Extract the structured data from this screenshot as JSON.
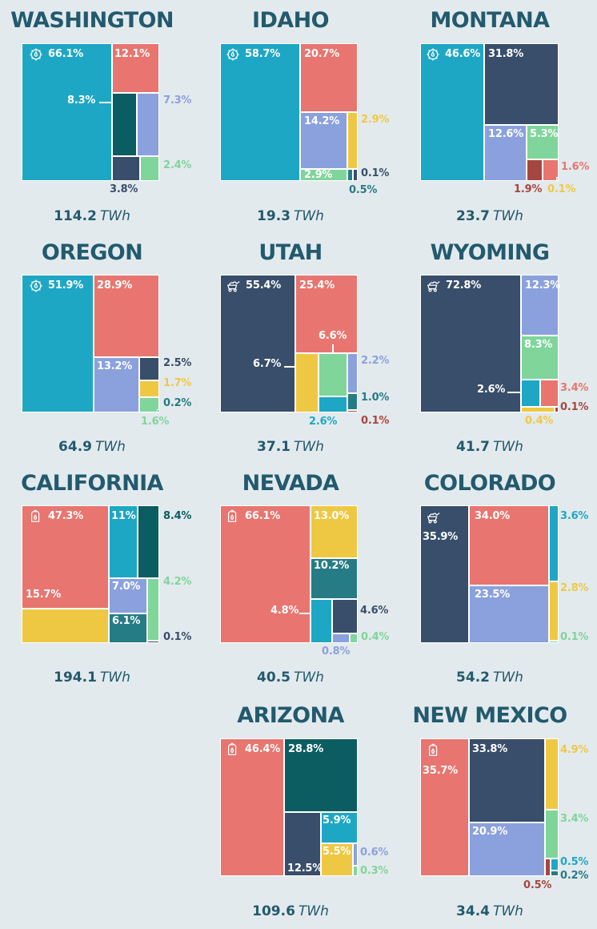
{
  "colors": {
    "hydro": "#1ea7c4",
    "gas": "#e8756f",
    "coal": "#384e6a",
    "nuclear": "#0b5d62",
    "wind": "#8ba1dd",
    "solar": "#efc843",
    "other_green": "#7fd59a",
    "geothermal": "#267c85",
    "oil": "#a6473f",
    "background": "#e3eaed",
    "title": "#225a6e"
  },
  "chart_data": [
    {
      "type": "treemap",
      "title": "WASHINGTON",
      "total": "114.2",
      "unit": "TWh",
      "icon": "hydro-icon",
      "values": [
        {
          "category": "hydro",
          "value": 66.1,
          "label": "66.1%"
        },
        {
          "category": "gas",
          "value": 12.1,
          "label": "12.1%"
        },
        {
          "category": "nuclear",
          "value": 8.3,
          "label": "8.3%"
        },
        {
          "category": "wind",
          "value": 7.3,
          "label": "7.3%"
        },
        {
          "category": "coal",
          "value": 3.8,
          "label": "3.8%"
        },
        {
          "category": "other_green",
          "value": 2.4,
          "label": "2.4%"
        }
      ]
    },
    {
      "type": "treemap",
      "title": "IDAHO",
      "total": "19.3",
      "unit": "TWh",
      "icon": "hydro-icon",
      "values": [
        {
          "category": "hydro",
          "value": 58.7,
          "label": "58.7%"
        },
        {
          "category": "gas",
          "value": 20.7,
          "label": "20.7%"
        },
        {
          "category": "wind",
          "value": 14.2,
          "label": "14.2%"
        },
        {
          "category": "solar",
          "value": 2.9,
          "label": "2.9%"
        },
        {
          "category": "other_green",
          "value": 2.9,
          "label": "2.9%"
        },
        {
          "category": "coal",
          "value": 0.1,
          "label": "0.1%"
        },
        {
          "category": "geothermal",
          "value": 0.5,
          "label": "0.5%"
        }
      ]
    },
    {
      "type": "treemap",
      "title": "MONTANA",
      "total": "23.7",
      "unit": "TWh",
      "icon": "hydro-icon",
      "values": [
        {
          "category": "hydro",
          "value": 46.6,
          "label": "46.6%"
        },
        {
          "category": "coal",
          "value": 31.8,
          "label": "31.8%"
        },
        {
          "category": "wind",
          "value": 12.6,
          "label": "12.6%"
        },
        {
          "category": "other_green",
          "value": 5.3,
          "label": "5.3%"
        },
        {
          "category": "oil",
          "value": 1.9,
          "label": "1.9%"
        },
        {
          "category": "gas",
          "value": 1.6,
          "label": "1.6%"
        },
        {
          "category": "solar",
          "value": 0.1,
          "label": "0.1%"
        }
      ]
    },
    {
      "type": "treemap",
      "title": "OREGON",
      "total": "64.9",
      "unit": "TWh",
      "icon": "hydro-icon",
      "values": [
        {
          "category": "hydro",
          "value": 51.9,
          "label": "51.9%"
        },
        {
          "category": "gas",
          "value": 28.9,
          "label": "28.9%"
        },
        {
          "category": "wind",
          "value": 13.2,
          "label": "13.2%"
        },
        {
          "category": "coal",
          "value": 2.5,
          "label": "2.5%"
        },
        {
          "category": "solar",
          "value": 1.7,
          "label": "1.7%"
        },
        {
          "category": "other_green",
          "value": 1.6,
          "label": "1.6%"
        },
        {
          "category": "geothermal",
          "value": 0.2,
          "label": "0.2%"
        }
      ]
    },
    {
      "type": "treemap",
      "title": "UTAH",
      "total": "37.1",
      "unit": "TWh",
      "icon": "coal-icon",
      "values": [
        {
          "category": "coal",
          "value": 55.4,
          "label": "55.4%"
        },
        {
          "category": "gas",
          "value": 25.4,
          "label": "25.4%"
        },
        {
          "category": "solar",
          "value": 6.7,
          "label": "6.7%"
        },
        {
          "category": "other_green",
          "value": 6.6,
          "label": "6.6%"
        },
        {
          "category": "wind",
          "value": 2.2,
          "label": "2.2%"
        },
        {
          "category": "hydro",
          "value": 2.6,
          "label": "2.6%"
        },
        {
          "category": "geothermal",
          "value": 1.0,
          "label": "1.0%"
        },
        {
          "category": "oil",
          "value": 0.1,
          "label": "0.1%"
        }
      ]
    },
    {
      "type": "treemap",
      "title": "WYOMING",
      "total": "41.7",
      "unit": "TWh",
      "icon": "coal-icon",
      "values": [
        {
          "category": "coal",
          "value": 72.8,
          "label": "72.8%"
        },
        {
          "category": "wind",
          "value": 12.3,
          "label": "12.3%"
        },
        {
          "category": "other_green",
          "value": 8.3,
          "label": "8.3%"
        },
        {
          "category": "hydro",
          "value": 2.6,
          "label": "2.6%"
        },
        {
          "category": "gas",
          "value": 3.4,
          "label": "3.4%"
        },
        {
          "category": "solar",
          "value": 0.4,
          "label": "0.4%"
        },
        {
          "category": "oil",
          "value": 0.1,
          "label": "0.1%"
        }
      ]
    },
    {
      "type": "treemap",
      "title": "CALIFORNIA",
      "total": "194.1",
      "unit": "TWh",
      "icon": "gas-icon",
      "values": [
        {
          "category": "gas",
          "value": 47.3,
          "label": "47.3%"
        },
        {
          "category": "hydro",
          "value": 11,
          "label": "11%"
        },
        {
          "category": "nuclear",
          "value": 8.4,
          "label": "8.4%"
        },
        {
          "category": "solar",
          "value": 15.7,
          "label": "15.7%"
        },
        {
          "category": "wind",
          "value": 7.0,
          "label": "7.0%"
        },
        {
          "category": "geothermal",
          "value": 6.1,
          "label": "6.1%"
        },
        {
          "category": "other_green",
          "value": 4.2,
          "label": "4.2%"
        },
        {
          "category": "coal",
          "value": 0.1,
          "label": "0.1%"
        }
      ]
    },
    {
      "type": "treemap",
      "title": "NEVADA",
      "total": "40.5",
      "unit": "TWh",
      "icon": "gas-icon",
      "values": [
        {
          "category": "gas",
          "value": 66.1,
          "label": "66.1%"
        },
        {
          "category": "solar",
          "value": 13.0,
          "label": "13.0%"
        },
        {
          "category": "geothermal",
          "value": 10.2,
          "label": "10.2%"
        },
        {
          "category": "hydro",
          "value": 4.8,
          "label": "4.8%"
        },
        {
          "category": "coal",
          "value": 4.6,
          "label": "4.6%"
        },
        {
          "category": "wind",
          "value": 0.8,
          "label": "0.8%"
        },
        {
          "category": "other_green",
          "value": 0.4,
          "label": "0.4%"
        }
      ]
    },
    {
      "type": "treemap",
      "title": "COLORADO",
      "total": "54.2",
      "unit": "TWh",
      "icon": "coal-icon",
      "values": [
        {
          "category": "coal",
          "value": 35.9,
          "label": "35.9%"
        },
        {
          "category": "gas",
          "value": 34.0,
          "label": "34.0%"
        },
        {
          "category": "wind",
          "value": 23.5,
          "label": "23.5%"
        },
        {
          "category": "hydro",
          "value": 3.6,
          "label": "3.6%"
        },
        {
          "category": "solar",
          "value": 2.8,
          "label": "2.8%"
        },
        {
          "category": "other_green",
          "value": 0.1,
          "label": "0.1%"
        }
      ]
    },
    {
      "type": "treemap",
      "title": "ARIZONA",
      "total": "109.6",
      "unit": "TWh",
      "icon": "gas-icon",
      "values": [
        {
          "category": "gas",
          "value": 46.4,
          "label": "46.4%"
        },
        {
          "category": "nuclear",
          "value": 28.8,
          "label": "28.8%"
        },
        {
          "category": "coal",
          "value": 12.5,
          "label": "12.5%"
        },
        {
          "category": "hydro",
          "value": 5.9,
          "label": "5.9%"
        },
        {
          "category": "solar",
          "value": 5.5,
          "label": "5.5%"
        },
        {
          "category": "wind",
          "value": 0.6,
          "label": "0.6%"
        },
        {
          "category": "other_green",
          "value": 0.3,
          "label": "0.3%"
        }
      ]
    },
    {
      "type": "treemap",
      "title": "NEW MEXICO",
      "total": "34.4",
      "unit": "TWh",
      "icon": "gas-icon",
      "values": [
        {
          "category": "gas",
          "value": 35.7,
          "label": "35.7%"
        },
        {
          "category": "coal",
          "value": 33.8,
          "label": "33.8%"
        },
        {
          "category": "wind",
          "value": 20.9,
          "label": "20.9%"
        },
        {
          "category": "solar",
          "value": 4.9,
          "label": "4.9%"
        },
        {
          "category": "other_green",
          "value": 3.4,
          "label": "3.4%"
        },
        {
          "category": "hydro",
          "value": 0.5,
          "label": "0.5%"
        },
        {
          "category": "oil",
          "value": 0.5,
          "label": "0.5%"
        },
        {
          "category": "geothermal",
          "value": 0.2,
          "label": "0.2%"
        }
      ]
    }
  ]
}
